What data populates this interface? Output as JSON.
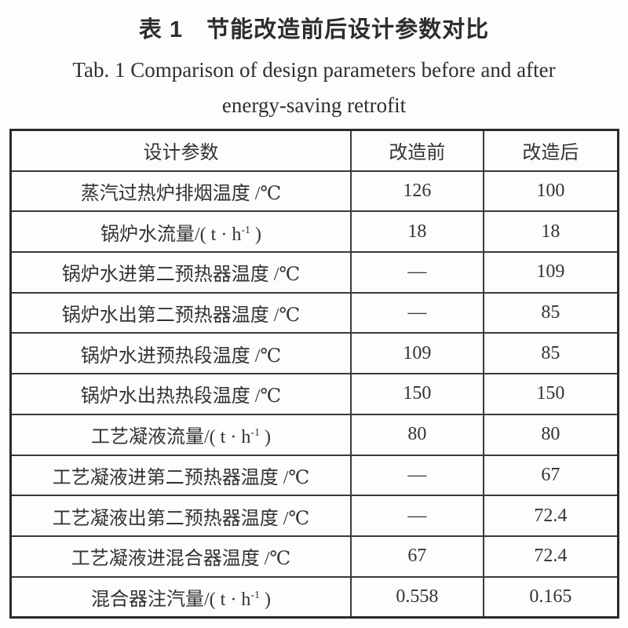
{
  "caption": {
    "zh": "表 1　节能改造前后设计参数对比",
    "en_line1": "Tab. 1  Comparison of design parameters before and after",
    "en_line2": "energy-saving retrofit"
  },
  "table": {
    "columns": [
      "设计参数",
      "改造前",
      "改造后"
    ],
    "rows": [
      {
        "param": [
          {
            "t": "蒸汽过热炉排烟温度 /℃"
          }
        ],
        "before": "126",
        "after": "100"
      },
      {
        "param": [
          {
            "t": "锅炉水流量/( t · h"
          },
          {
            "t": "-1",
            "sup": true
          },
          {
            "t": " )"
          }
        ],
        "before": "18",
        "after": "18"
      },
      {
        "param": [
          {
            "t": "锅炉水进第二预热器温度 /℃"
          }
        ],
        "before": "—",
        "after": "109"
      },
      {
        "param": [
          {
            "t": "锅炉水出第二预热器温度 /℃"
          }
        ],
        "before": "—",
        "after": "85"
      },
      {
        "param": [
          {
            "t": "锅炉水进预热段温度 /℃"
          }
        ],
        "before": "109",
        "after": "85"
      },
      {
        "param": [
          {
            "t": "锅炉水出热热段温度 /℃"
          }
        ],
        "before": "150",
        "after": "150"
      },
      {
        "param": [
          {
            "t": "工艺凝液流量/( t · h"
          },
          {
            "t": "-1",
            "sup": true
          },
          {
            "t": " )"
          }
        ],
        "before": "80",
        "after": "80"
      },
      {
        "param": [
          {
            "t": "工艺凝液进第二预热器温度 /℃"
          }
        ],
        "before": "—",
        "after": "67"
      },
      {
        "param": [
          {
            "t": "工艺凝液出第二预热器温度 /℃"
          }
        ],
        "before": "—",
        "after": "72.4"
      },
      {
        "param": [
          {
            "t": "工艺凝液进混合器温度 /℃"
          }
        ],
        "before": "67",
        "after": "72.4"
      },
      {
        "param": [
          {
            "t": "混合器注汽量/( t · h"
          },
          {
            "t": "-1",
            "sup": true
          },
          {
            "t": " )"
          }
        ],
        "before": "0.558",
        "after": "0.165"
      }
    ]
  },
  "colors": {
    "border": "#2a2a2a",
    "text": "#333333",
    "background": "#fdfdfd"
  }
}
